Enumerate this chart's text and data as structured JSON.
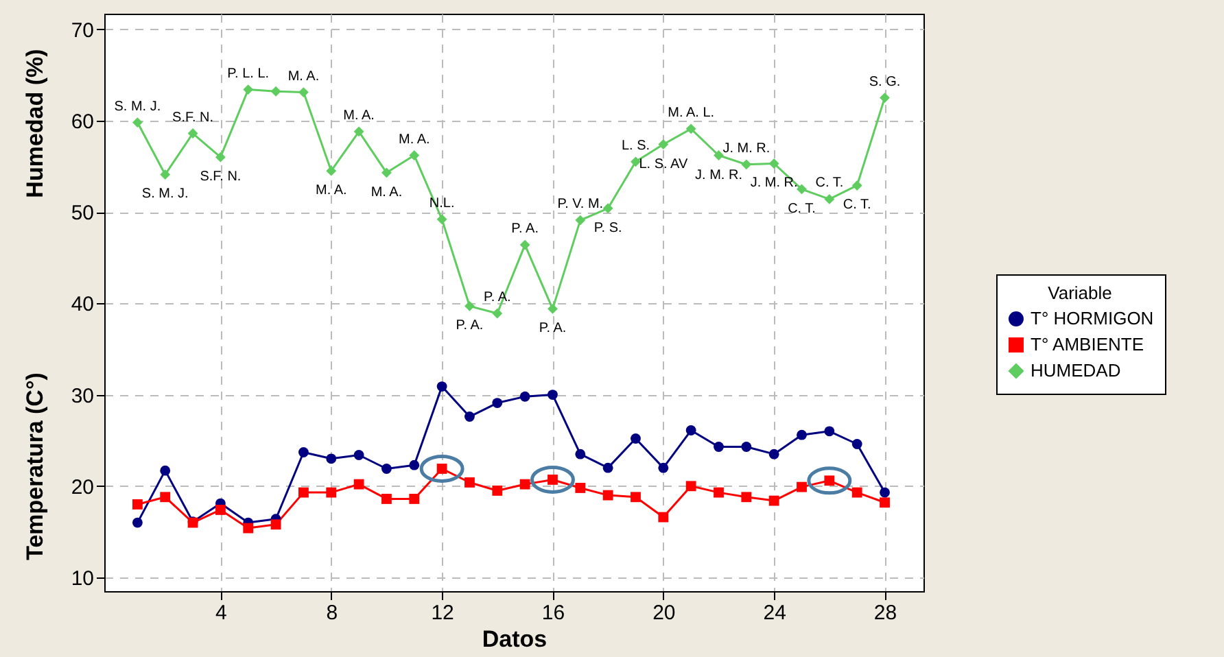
{
  "chart_data": {
    "type": "line",
    "xlabel": "Datos",
    "ylabel": "Temperatura (C°)",
    "legend_title": "Variable",
    "legend": "right",
    "grid": true,
    "line_style": "solid",
    "x": [
      1,
      2,
      3,
      4,
      5,
      6,
      7,
      8,
      9,
      10,
      11,
      12,
      13,
      14,
      15,
      16,
      17,
      18,
      19,
      20,
      21,
      22,
      23,
      24,
      25,
      26,
      27,
      28
    ],
    "xlim": [
      -0.2,
      29.4
    ],
    "xticks": [
      4,
      8,
      12,
      16,
      20,
      24,
      28
    ],
    "ylim": [
      8.5,
      71.7
    ],
    "yticks": [
      10,
      20,
      30,
      40,
      50,
      60,
      70
    ],
    "series": [
      {
        "name": "T° HORMIGON",
        "color": "#000080",
        "marker": "circle",
        "values": [
          16.0,
          21.7,
          16.1,
          18.1,
          16.0,
          16.4,
          23.7,
          23.0,
          23.4,
          21.9,
          22.3,
          30.9,
          27.6,
          29.1,
          29.8,
          30.0,
          23.5,
          22.0,
          25.2,
          22.0,
          26.1,
          24.3,
          24.3,
          23.5,
          25.6,
          26.0,
          24.6,
          19.3
        ]
      },
      {
        "name": "T° AMBIENTE",
        "color": "#ff0000",
        "marker": "square",
        "values": [
          18.0,
          18.8,
          16.0,
          17.4,
          15.4,
          15.8,
          19.3,
          19.3,
          20.2,
          18.6,
          18.6,
          21.9,
          20.4,
          19.5,
          20.2,
          20.7,
          19.8,
          19.0,
          18.8,
          16.6,
          20.0,
          19.3,
          18.8,
          18.4,
          19.9,
          20.6,
          19.3,
          18.2
        ]
      },
      {
        "name": "HUMEDAD",
        "color": "#5fcc5f",
        "marker": "diamond",
        "values": [
          59.8,
          54.1,
          58.6,
          56.0,
          63.4,
          63.2,
          63.1,
          54.5,
          58.8,
          54.3,
          56.2,
          49.2,
          39.7,
          38.9,
          46.4,
          39.4,
          49.1,
          50.4,
          55.5,
          57.4,
          59.1,
          56.2,
          55.2,
          55.3,
          52.5,
          51.4,
          52.9,
          62.5
        ]
      }
    ],
    "annotations": [
      "Humedad (%)",
      {
        "text": "S. M. J.",
        "x": 1,
        "y": 59.8
      },
      {
        "text": "S. M. J.",
        "x": 2,
        "y": 54.1
      },
      {
        "text": "S.F. N.",
        "x": 3,
        "y": 58.6
      },
      {
        "text": "S.F. N.",
        "x": 4,
        "y": 56.0
      },
      {
        "text": "P. L. L.",
        "x": 5,
        "y": 63.4
      },
      {
        "text": "M. A.",
        "x": 7,
        "y": 63.1
      },
      {
        "text": "M. A.",
        "x": 8,
        "y": 54.5
      },
      {
        "text": "M. A.",
        "x": 9,
        "y": 58.8
      },
      {
        "text": "M. A.",
        "x": 10,
        "y": 54.3
      },
      {
        "text": "M. A.",
        "x": 11,
        "y": 56.2
      },
      {
        "text": "N.L.",
        "x": 12,
        "y": 49.2
      },
      {
        "text": "P. A.",
        "x": 13,
        "y": 39.7
      },
      {
        "text": "P. A.",
        "x": 14,
        "y": 38.9
      },
      {
        "text": "P. A.",
        "x": 15,
        "y": 46.4
      },
      {
        "text": "P. A.",
        "x": 16,
        "y": 39.4
      },
      {
        "text": "P. V. M.",
        "x": 17,
        "y": 49.1
      },
      {
        "text": "P. S.",
        "x": 18,
        "y": 50.4
      },
      {
        "text": "L. S.",
        "x": 19,
        "y": 55.5
      },
      {
        "text": "L. S. AV",
        "x": 20,
        "y": 57.4
      },
      {
        "text": "M. A. L.",
        "x": 21,
        "y": 59.1
      },
      {
        "text": "J. M. R.",
        "x": 22,
        "y": 56.2
      },
      {
        "text": "J. M. R.",
        "x": 23,
        "y": 55.2
      },
      {
        "text": "J. M. R.",
        "x": 24,
        "y": 55.3
      },
      {
        "text": "C. T.",
        "x": 25,
        "y": 52.5
      },
      {
        "text": "C. T.",
        "x": 26,
        "y": 51.4
      },
      {
        "text": "C. T.",
        "x": 27,
        "y": 52.9
      },
      {
        "text": "S. G.",
        "x": 28,
        "y": 62.5
      }
    ]
  }
}
